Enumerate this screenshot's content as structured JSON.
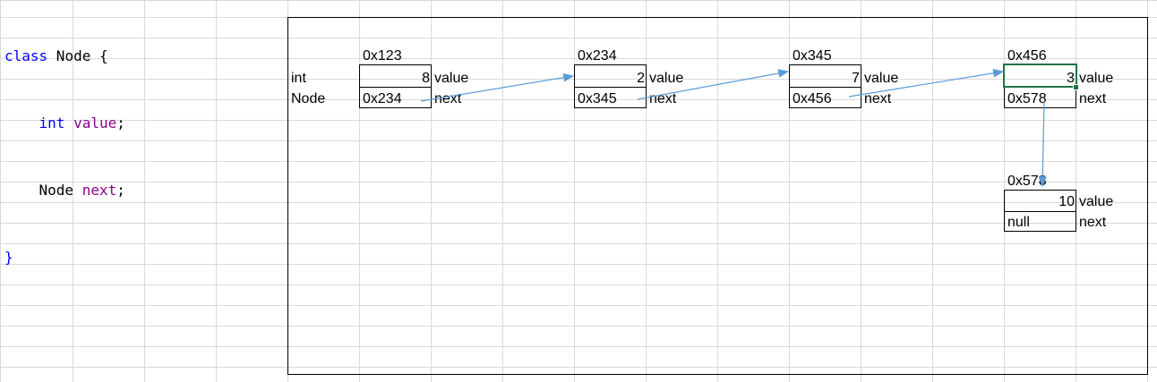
{
  "code": {
    "line1": {
      "kw": "class",
      "rest": " Node {"
    },
    "line2": {
      "type": "int",
      "name": "value",
      "semi": ";"
    },
    "line3": {
      "type": "Node",
      "name": "next",
      "semi": ";"
    },
    "line4": "}"
  },
  "row_labels": {
    "int": "int",
    "node": "Node"
  },
  "field_labels": {
    "value": "value",
    "next": "next"
  },
  "nodes": [
    {
      "address": "0x123",
      "value": "8",
      "next": "0x234"
    },
    {
      "address": "0x234",
      "value": "2",
      "next": "0x345"
    },
    {
      "address": "0x345",
      "value": "7",
      "next": "0x456"
    },
    {
      "address": "0x456",
      "value": "3",
      "next": "0x578"
    },
    {
      "address": "0x578",
      "value": "10",
      "next": "null"
    }
  ],
  "colors": {
    "arrow": "#5b9bd5",
    "selection": "#217346",
    "grid": "#d9d9d9",
    "keyword": "#0000ff",
    "field": "#8b008b"
  }
}
